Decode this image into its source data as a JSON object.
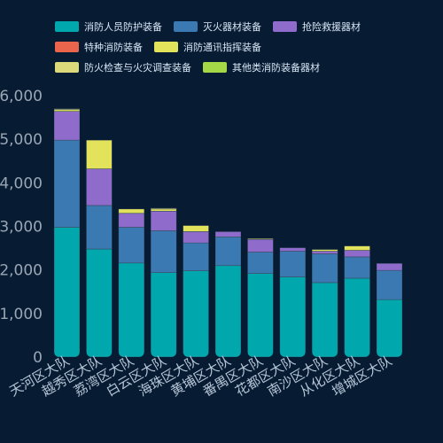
{
  "chart_data": {
    "type": "bar",
    "stacked": true,
    "title": "",
    "xlabel": "",
    "ylabel": "",
    "ylim": [
      0,
      6000
    ],
    "yticks": [
      "0",
      "1,000",
      "2,000",
      "3,000",
      "4,000",
      "5,000",
      "6,000"
    ],
    "grid": false,
    "legend_position": "top-left",
    "categories": [
      "天河区大队",
      "越秀区大队",
      "荔湾区大队",
      "白云区大队",
      "海珠区大队",
      "黄埔区大队",
      "番禺区大队",
      "花都区大队",
      "南沙区大队",
      "从化区大队",
      "增城区大队"
    ],
    "series": [
      {
        "name": "消防人员防护装备",
        "color": "#00a7ad",
        "values": [
          2980,
          2480,
          2160,
          1940,
          1980,
          2100,
          1920,
          1840,
          1710,
          1810,
          1320
        ]
      },
      {
        "name": "灭火器材装备",
        "color": "#3a79b2",
        "values": [
          2000,
          1000,
          820,
          960,
          640,
          660,
          490,
          590,
          660,
          490,
          670
        ]
      },
      {
        "name": "抢险救援器材",
        "color": "#8f6bcc",
        "values": [
          660,
          840,
          320,
          450,
          260,
          120,
          290,
          80,
          60,
          150,
          160
        ]
      },
      {
        "name": "特种消防装备",
        "color": "#e9664c",
        "values": [
          0,
          0,
          0,
          0,
          0,
          0,
          0,
          0,
          0,
          0,
          0
        ]
      },
      {
        "name": "消防通讯指挥装备",
        "color": "#e2e35b",
        "values": [
          40,
          660,
          100,
          50,
          140,
          0,
          20,
          0,
          40,
          100,
          0
        ]
      },
      {
        "name": "防火检查与火灾调查装备",
        "color": "#dbd97a",
        "values": [
          20,
          0,
          0,
          20,
          0,
          0,
          0,
          0,
          0,
          0,
          0
        ]
      },
      {
        "name": "其他类消防装备器材",
        "color": "#a4d846",
        "values": [
          0,
          0,
          0,
          0,
          0,
          0,
          0,
          0,
          0,
          0,
          0
        ]
      }
    ]
  }
}
